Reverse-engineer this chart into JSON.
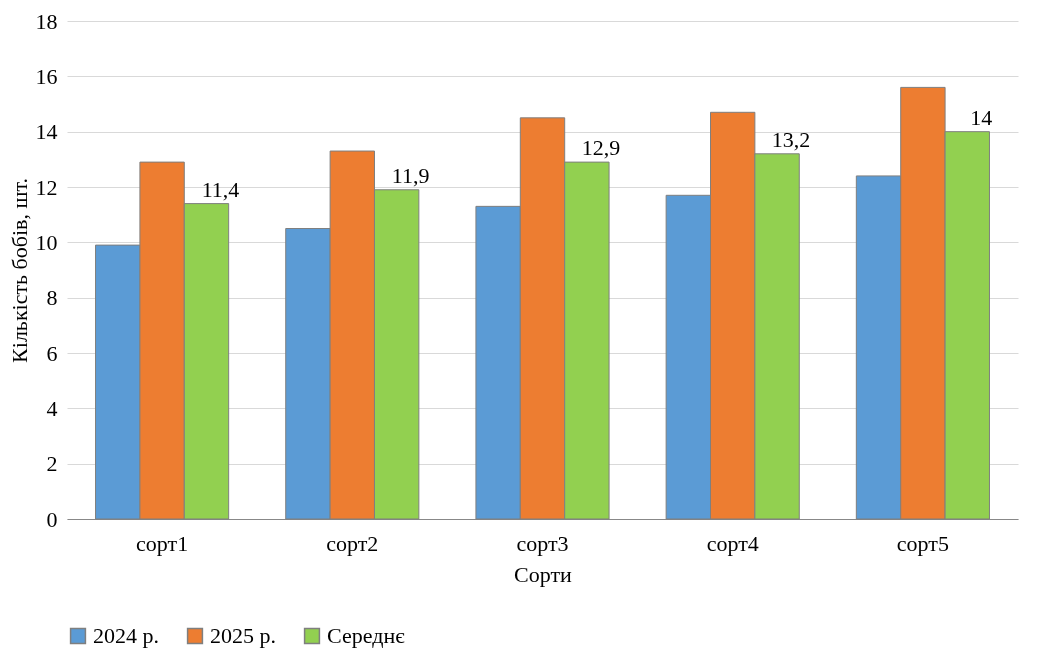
{
  "chart_data": {
    "type": "bar",
    "xlabel": "Сорти",
    "ylabel": "Кількість бобів, шт.",
    "categories": [
      "сорт1",
      "сорт2",
      "сорт3",
      "сорт4",
      "сорт5"
    ],
    "series": [
      {
        "name": "2024 р.",
        "color": "#5b9bd5",
        "values": [
          9.9,
          10.5,
          11.3,
          11.7,
          12.4
        ]
      },
      {
        "name": "2025 р.",
        "color": "#ed7d31",
        "values": [
          12.9,
          13.3,
          14.5,
          14.7,
          15.6
        ]
      },
      {
        "name": "Середнє",
        "color": "#92d050",
        "values": [
          11.4,
          11.9,
          12.9,
          13.2,
          14
        ],
        "value_labels": [
          "11,4",
          "11,9",
          "12,9",
          "13,2",
          "14"
        ]
      }
    ],
    "ylim": [
      0,
      18
    ],
    "yticks": [
      0,
      2,
      4,
      6,
      8,
      10,
      12,
      14,
      16,
      18
    ],
    "grid": "y",
    "legend": "bottom"
  }
}
